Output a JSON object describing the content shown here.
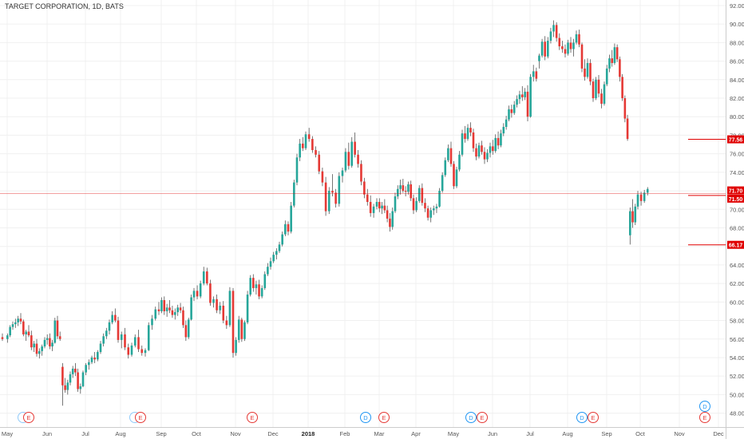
{
  "chart_data": {
    "type": "candlestick",
    "title": "TARGET CORPORATION, 1D, BATS",
    "y_ticks": [
      48,
      50,
      52,
      54,
      56,
      58,
      60,
      62,
      64,
      66,
      68,
      70,
      72,
      74,
      76,
      78,
      80,
      82,
      84,
      86,
      88,
      90,
      92
    ],
    "y_tick_labels": [
      "48.00",
      "50.00",
      "52.00",
      "54.00",
      "56.00",
      "58.00",
      "60.00",
      "62.00",
      "64.00",
      "66.00",
      "68.00",
      "70.00",
      "72.00",
      "74.00",
      "76.00",
      "78.00",
      "80.00",
      "82.00",
      "84.00",
      "86.00",
      "88.00",
      "90.00",
      "92.00"
    ],
    "ylim": [
      46.5,
      92.6
    ],
    "x_labels": [
      "May",
      "Jun",
      "Jul",
      "Aug",
      "Sep",
      "Oct",
      "Nov",
      "Dec",
      "2018",
      "Feb",
      "Mar",
      "Apr",
      "May",
      "Jun",
      "Jul",
      "Aug",
      "Sep",
      "Oct",
      "Nov",
      "Dec"
    ],
    "candles": [
      [
        56.2,
        56.6,
        55.8,
        56.0
      ],
      [
        56.0,
        56.6,
        55.6,
        56.4
      ],
      [
        56.4,
        57.5,
        56.2,
        57.3
      ],
      [
        57.3,
        57.9,
        57.0,
        57.6
      ],
      [
        57.6,
        58.2,
        57.2,
        57.8
      ],
      [
        57.8,
        58.5,
        57.4,
        58.2
      ],
      [
        58.2,
        58.8,
        57.6,
        57.9
      ],
      [
        57.9,
        58.1,
        56.3,
        56.5
      ],
      [
        56.5,
        57.0,
        55.8,
        56.8
      ],
      [
        56.8,
        57.5,
        56.2,
        56.4
      ],
      [
        56.4,
        56.9,
        54.8,
        55.1
      ],
      [
        55.1,
        55.8,
        54.6,
        55.5
      ],
      [
        55.5,
        56.0,
        54.1,
        54.4
      ],
      [
        54.4,
        55.0,
        53.9,
        54.7
      ],
      [
        54.7,
        55.4,
        54.2,
        55.2
      ],
      [
        55.2,
        56.2,
        55.0,
        55.9
      ],
      [
        55.9,
        56.5,
        55.4,
        56.1
      ],
      [
        56.1,
        56.6,
        54.9,
        55.2
      ],
      [
        55.2,
        55.9,
        54.7,
        55.6
      ],
      [
        55.6,
        58.3,
        55.5,
        58.0
      ],
      [
        58.0,
        58.5,
        56.0,
        56.3
      ],
      [
        56.3,
        56.8,
        55.8,
        56.0
      ],
      [
        53.0,
        53.4,
        48.8,
        51.0
      ],
      [
        51.0,
        51.8,
        50.2,
        50.5
      ],
      [
        50.5,
        51.6,
        50.0,
        51.3
      ],
      [
        51.3,
        52.5,
        51.0,
        52.2
      ],
      [
        52.2,
        53.1,
        51.8,
        52.8
      ],
      [
        52.8,
        53.4,
        52.0,
        52.4
      ],
      [
        52.4,
        52.8,
        50.3,
        50.6
      ],
      [
        50.6,
        51.2,
        50.1,
        50.9
      ],
      [
        50.9,
        52.6,
        50.8,
        52.4
      ],
      [
        52.4,
        53.4,
        52.1,
        53.2
      ],
      [
        53.2,
        53.8,
        52.7,
        53.5
      ],
      [
        53.5,
        54.2,
        53.3,
        54.0
      ],
      [
        54.0,
        54.6,
        53.4,
        53.8
      ],
      [
        53.8,
        54.8,
        53.6,
        54.6
      ],
      [
        54.6,
        55.8,
        54.4,
        55.5
      ],
      [
        55.5,
        56.6,
        55.2,
        56.3
      ],
      [
        56.3,
        57.2,
        56.0,
        56.9
      ],
      [
        56.9,
        58.1,
        56.5,
        57.8
      ],
      [
        57.8,
        59.0,
        57.6,
        58.6
      ],
      [
        58.6,
        59.3,
        57.8,
        58.0
      ],
      [
        58.0,
        58.4,
        55.6,
        55.9
      ],
      [
        55.9,
        56.8,
        55.0,
        56.5
      ],
      [
        56.5,
        57.2,
        54.8,
        55.1
      ],
      [
        55.1,
        55.5,
        53.9,
        54.3
      ],
      [
        54.3,
        55.6,
        54.1,
        55.3
      ],
      [
        55.3,
        56.5,
        55.1,
        56.2
      ],
      [
        56.2,
        57.0,
        54.6,
        54.9
      ],
      [
        54.9,
        55.3,
        54.2,
        54.5
      ],
      [
        54.5,
        55.0,
        54.1,
        54.8
      ],
      [
        54.8,
        57.8,
        54.7,
        57.5
      ],
      [
        57.5,
        58.6,
        57.0,
        58.2
      ],
      [
        58.2,
        59.5,
        58.0,
        59.2
      ],
      [
        59.2,
        60.0,
        58.6,
        59.0
      ],
      [
        59.0,
        60.5,
        58.8,
        60.2
      ],
      [
        60.2,
        60.6,
        58.6,
        59.0
      ],
      [
        59.0,
        59.8,
        58.4,
        59.4
      ],
      [
        59.4,
        60.2,
        58.8,
        59.1
      ],
      [
        59.1,
        59.6,
        58.3,
        58.6
      ],
      [
        58.6,
        59.3,
        58.1,
        58.9
      ],
      [
        58.9,
        59.7,
        58.5,
        59.4
      ],
      [
        59.4,
        59.9,
        58.8,
        59.1
      ],
      [
        59.1,
        59.5,
        57.2,
        57.5
      ],
      [
        57.5,
        58.0,
        55.8,
        56.2
      ],
      [
        56.2,
        58.3,
        56.0,
        58.1
      ],
      [
        58.1,
        60.8,
        58.0,
        60.5
      ],
      [
        60.5,
        61.5,
        60.1,
        61.2
      ],
      [
        61.2,
        61.8,
        60.3,
        60.6
      ],
      [
        60.6,
        62.3,
        60.4,
        62.0
      ],
      [
        62.0,
        63.8,
        61.8,
        63.3
      ],
      [
        63.3,
        63.7,
        61.8,
        62.0
      ],
      [
        62.0,
        62.4,
        59.6,
        59.9
      ],
      [
        59.9,
        60.6,
        59.4,
        60.3
      ],
      [
        60.3,
        60.8,
        58.8,
        59.1
      ],
      [
        59.1,
        60.0,
        58.7,
        59.6
      ],
      [
        59.6,
        60.1,
        57.7,
        58.0
      ],
      [
        58.0,
        58.5,
        57.1,
        57.5
      ],
      [
        57.5,
        61.6,
        57.3,
        61.2
      ],
      [
        61.2,
        61.5,
        54.0,
        54.5
      ],
      [
        54.5,
        56.2,
        54.2,
        55.9
      ],
      [
        55.9,
        58.5,
        55.6,
        58.1
      ],
      [
        58.1,
        58.3,
        55.7,
        56.0
      ],
      [
        56.0,
        58.0,
        55.8,
        57.8
      ],
      [
        57.8,
        61.2,
        57.6,
        60.8
      ],
      [
        60.8,
        62.9,
        60.6,
        62.6
      ],
      [
        62.6,
        63.0,
        61.1,
        61.5
      ],
      [
        61.5,
        62.3,
        60.8,
        61.9
      ],
      [
        61.9,
        62.4,
        60.3,
        60.6
      ],
      [
        60.6,
        61.8,
        60.4,
        61.5
      ],
      [
        61.5,
        63.3,
        61.3,
        63.0
      ],
      [
        63.0,
        64.2,
        62.8,
        63.8
      ],
      [
        63.8,
        64.8,
        63.5,
        64.4
      ],
      [
        64.4,
        65.4,
        64.2,
        65.1
      ],
      [
        65.1,
        65.8,
        64.6,
        65.5
      ],
      [
        65.5,
        66.5,
        65.3,
        66.2
      ],
      [
        66.2,
        67.6,
        66.0,
        67.3
      ],
      [
        67.3,
        68.8,
        67.1,
        68.4
      ],
      [
        68.4,
        68.7,
        67.2,
        67.6
      ],
      [
        67.6,
        70.8,
        67.4,
        70.4
      ],
      [
        70.4,
        73.2,
        70.2,
        72.9
      ],
      [
        72.9,
        76.0,
        72.6,
        75.6
      ],
      [
        75.6,
        77.6,
        75.2,
        77.1
      ],
      [
        77.1,
        77.8,
        76.3,
        76.6
      ],
      [
        76.6,
        78.4,
        76.4,
        78.1
      ],
      [
        78.1,
        78.8,
        77.3,
        77.6
      ],
      [
        77.6,
        77.9,
        76.1,
        76.4
      ],
      [
        76.4,
        76.8,
        75.6,
        75.9
      ],
      [
        75.9,
        76.3,
        73.8,
        74.1
      ],
      [
        74.1,
        74.5,
        72.5,
        72.9
      ],
      [
        72.9,
        73.5,
        69.3,
        69.8
      ],
      [
        69.8,
        72.4,
        69.5,
        72.0
      ],
      [
        72.0,
        73.8,
        71.4,
        71.8
      ],
      [
        71.8,
        72.2,
        70.2,
        70.6
      ],
      [
        70.6,
        74.0,
        70.3,
        73.6
      ],
      [
        73.6,
        74.5,
        72.9,
        74.2
      ],
      [
        74.2,
        76.6,
        74.0,
        76.2
      ],
      [
        76.2,
        77.2,
        74.3,
        74.7
      ],
      [
        74.7,
        77.8,
        74.5,
        77.3
      ],
      [
        77.3,
        78.3,
        75.6,
        75.9
      ],
      [
        75.9,
        76.4,
        74.5,
        74.9
      ],
      [
        74.9,
        75.3,
        72.6,
        73.0
      ],
      [
        73.0,
        73.4,
        71.2,
        71.6
      ],
      [
        71.6,
        72.2,
        70.4,
        70.8
      ],
      [
        70.8,
        71.5,
        69.2,
        69.6
      ],
      [
        69.6,
        70.6,
        69.1,
        70.3
      ],
      [
        70.3,
        71.2,
        70.0,
        70.8
      ],
      [
        70.8,
        71.2,
        69.7,
        70.1
      ],
      [
        70.1,
        70.8,
        69.5,
        70.4
      ],
      [
        70.4,
        71.1,
        69.6,
        69.9
      ],
      [
        69.9,
        70.4,
        68.6,
        69.0
      ],
      [
        69.0,
        69.6,
        67.6,
        68.1
      ],
      [
        68.1,
        70.2,
        67.8,
        69.8
      ],
      [
        69.8,
        71.8,
        69.6,
        71.4
      ],
      [
        71.4,
        72.6,
        71.1,
        72.2
      ],
      [
        72.2,
        73.2,
        71.6,
        72.6
      ],
      [
        72.6,
        73.3,
        71.8,
        72.0
      ],
      [
        72.0,
        72.5,
        71.4,
        71.9
      ],
      [
        71.9,
        73.0,
        71.6,
        72.7
      ],
      [
        72.7,
        73.1,
        70.9,
        71.2
      ],
      [
        71.2,
        71.6,
        69.5,
        69.9
      ],
      [
        69.9,
        71.3,
        69.7,
        70.9
      ],
      [
        70.9,
        72.6,
        70.7,
        72.3
      ],
      [
        72.3,
        72.8,
        70.4,
        70.7
      ],
      [
        70.7,
        71.2,
        69.7,
        70.1
      ],
      [
        70.1,
        70.4,
        68.8,
        69.1
      ],
      [
        69.1,
        70.2,
        68.6,
        69.9
      ],
      [
        69.9,
        70.4,
        69.4,
        70.1
      ],
      [
        70.1,
        70.6,
        69.6,
        70.3
      ],
      [
        70.3,
        72.3,
        70.2,
        72.0
      ],
      [
        72.0,
        74.0,
        71.8,
        73.7
      ],
      [
        73.7,
        75.6,
        73.5,
        75.3
      ],
      [
        75.3,
        77.0,
        75.1,
        76.6
      ],
      [
        76.6,
        77.3,
        74.6,
        74.9
      ],
      [
        74.9,
        75.2,
        72.2,
        72.5
      ],
      [
        72.5,
        74.6,
        72.3,
        74.3
      ],
      [
        74.3,
        76.3,
        74.1,
        75.9
      ],
      [
        75.9,
        78.6,
        75.7,
        78.2
      ],
      [
        78.2,
        79.0,
        77.2,
        77.6
      ],
      [
        77.6,
        79.2,
        77.4,
        78.8
      ],
      [
        78.8,
        79.4,
        77.9,
        78.3
      ],
      [
        78.3,
        78.7,
        76.2,
        76.6
      ],
      [
        76.6,
        77.1,
        75.3,
        75.7
      ],
      [
        75.7,
        77.2,
        75.5,
        76.9
      ],
      [
        76.9,
        77.4,
        75.9,
        76.2
      ],
      [
        76.2,
        76.7,
        74.9,
        75.4
      ],
      [
        75.4,
        76.5,
        75.1,
        76.1
      ],
      [
        76.1,
        77.2,
        75.6,
        76.8
      ],
      [
        76.8,
        77.5,
        75.9,
        76.3
      ],
      [
        76.3,
        78.1,
        76.1,
        77.7
      ],
      [
        77.7,
        78.4,
        76.5,
        76.9
      ],
      [
        76.9,
        78.6,
        76.7,
        78.2
      ],
      [
        78.2,
        79.3,
        77.9,
        78.9
      ],
      [
        78.9,
        80.1,
        78.6,
        79.7
      ],
      [
        79.7,
        81.2,
        79.5,
        80.8
      ],
      [
        80.8,
        81.3,
        79.9,
        80.4
      ],
      [
        80.4,
        81.7,
        80.2,
        81.3
      ],
      [
        81.3,
        82.3,
        81.0,
        81.9
      ],
      [
        81.9,
        82.8,
        81.4,
        82.4
      ],
      [
        82.4,
        83.3,
        81.7,
        82.1
      ],
      [
        82.1,
        83.1,
        81.8,
        82.7
      ],
      [
        82.7,
        83.4,
        79.5,
        80.0
      ],
      [
        80.0,
        84.6,
        79.9,
        84.3
      ],
      [
        84.3,
        85.6,
        83.8,
        84.9
      ],
      [
        84.9,
        85.3,
        83.8,
        84.1
      ],
      [
        86.0,
        86.8,
        85.2,
        86.6
      ],
      [
        86.6,
        88.4,
        86.4,
        88.1
      ],
      [
        88.1,
        88.7,
        86.1,
        86.5
      ],
      [
        86.5,
        88.6,
        86.3,
        88.2
      ],
      [
        88.2,
        89.6,
        87.9,
        89.2
      ],
      [
        89.2,
        90.4,
        88.6,
        89.9
      ],
      [
        89.9,
        90.2,
        88.1,
        88.5
      ],
      [
        88.5,
        89.0,
        87.2,
        87.6
      ],
      [
        87.6,
        88.2,
        86.9,
        87.3
      ],
      [
        87.3,
        87.8,
        86.4,
        86.8
      ],
      [
        86.8,
        88.3,
        86.6,
        88.0
      ],
      [
        88.0,
        88.6,
        86.9,
        87.3
      ],
      [
        87.3,
        88.4,
        86.5,
        88.0
      ],
      [
        88.0,
        89.3,
        87.8,
        88.9
      ],
      [
        88.9,
        89.4,
        87.5,
        87.8
      ],
      [
        87.8,
        88.0,
        84.8,
        85.2
      ],
      [
        85.2,
        86.2,
        83.9,
        84.3
      ],
      [
        84.3,
        86.3,
        84.1,
        85.8
      ],
      [
        85.8,
        86.2,
        83.4,
        83.8
      ],
      [
        83.8,
        84.1,
        81.6,
        82.0
      ],
      [
        82.0,
        84.3,
        81.8,
        84.0
      ],
      [
        84.0,
        84.5,
        82.1,
        82.5
      ],
      [
        82.5,
        83.0,
        80.9,
        81.4
      ],
      [
        81.4,
        83.8,
        81.2,
        83.5
      ],
      [
        83.5,
        85.6,
        83.3,
        85.2
      ],
      [
        85.2,
        86.7,
        84.8,
        86.3
      ],
      [
        86.3,
        87.2,
        85.4,
        85.8
      ],
      [
        85.8,
        87.9,
        85.6,
        87.5
      ],
      [
        87.5,
        87.8,
        85.9,
        86.2
      ],
      [
        86.2,
        86.5,
        83.8,
        84.3
      ],
      [
        84.3,
        84.6,
        81.7,
        82.0
      ],
      [
        82.0,
        82.3,
        79.4,
        79.8
      ],
      [
        79.8,
        80.2,
        77.4,
        77.6
      ],
      [
        67.2,
        70.2,
        66.2,
        69.8
      ],
      [
        69.8,
        71.1,
        68.0,
        68.6
      ],
      [
        68.6,
        70.6,
        68.3,
        70.3
      ],
      [
        70.3,
        72.0,
        70.0,
        71.6
      ],
      [
        71.6,
        71.9,
        70.4,
        70.9
      ],
      [
        70.9,
        72.1,
        70.7,
        71.8
      ],
      [
        71.8,
        72.4,
        71.5,
        72.2
      ]
    ],
    "horizontal_lines": [
      {
        "price": 77.56,
        "label": "77.56",
        "color": "#e00000"
      },
      {
        "price": 71.7,
        "label": "71.70",
        "color": "#e00000"
      },
      {
        "price": 71.5,
        "label": "71.50",
        "color": "#e00000"
      },
      {
        "price": 66.17,
        "label": "66.17",
        "color": "#e00000"
      }
    ],
    "series_colors": {
      "up": "#26a69a",
      "down": "#e53935",
      "wick": "#555555"
    },
    "event_markers": [
      {
        "letter": "E",
        "color": "#e53935"
      },
      {
        "letter": "E",
        "color": "#e53935"
      },
      {
        "letter": "E",
        "color": "#e53935"
      },
      {
        "letter": "D",
        "color": "#2196f3"
      },
      {
        "letter": "E",
        "color": "#e53935"
      },
      {
        "letter": "D",
        "color": "#2196f3"
      },
      {
        "letter": "E",
        "color": "#e53935"
      },
      {
        "letter": "D",
        "color": "#2196f3"
      },
      {
        "letter": "E",
        "color": "#e53935"
      },
      {
        "letter": "D",
        "color": "#2196f3"
      },
      {
        "letter": "E",
        "color": "#e53935"
      }
    ],
    "grid": true
  }
}
